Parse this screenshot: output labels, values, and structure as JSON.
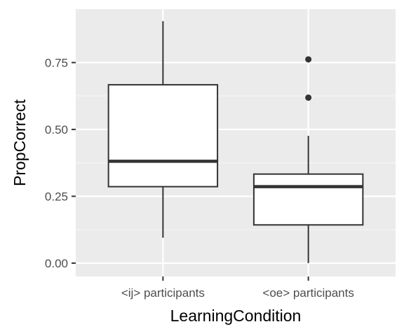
{
  "chart_data": {
    "type": "boxplot",
    "xlabel": "LearningCondition",
    "ylabel": "PropCorrect",
    "ylim": [
      -0.05,
      0.95
    ],
    "yticks": [
      0.0,
      0.25,
      0.5,
      0.75
    ],
    "ytick_labels": [
      "0.00",
      "0.25",
      "0.50",
      "0.75"
    ],
    "grid": true,
    "categories": [
      "<ij> participants",
      "<oe> participants"
    ],
    "boxes": [
      {
        "category": "<ij> participants",
        "whisker_low": 0.095,
        "q1": 0.286,
        "median": 0.381,
        "q3": 0.667,
        "whisker_high": 0.905,
        "outliers": []
      },
      {
        "category": "<oe> participants",
        "whisker_low": 0.0,
        "q1": 0.143,
        "median": 0.286,
        "q3": 0.333,
        "whisker_high": 0.476,
        "outliers": [
          0.619,
          0.762
        ]
      }
    ],
    "colors": {
      "panel": "#ebebeb",
      "grid_major": "#ffffff",
      "grid_minor": "#f5f5f5",
      "box_fill": "#ffffff",
      "box_line": "#333333",
      "tick_text": "#4d4d4d"
    }
  }
}
